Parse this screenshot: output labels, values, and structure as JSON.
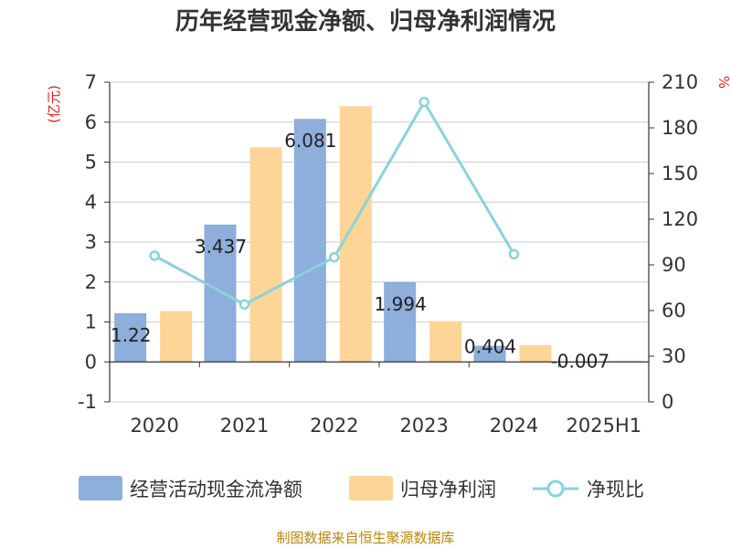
{
  "chart_data": {
    "type": "bar",
    "title": "历年经营现金净额、归母净利润情况",
    "categories": [
      "2020",
      "2021",
      "2022",
      "2023",
      "2024",
      "2025H1"
    ],
    "left_axis_unit": "(亿元)",
    "right_axis_unit": "%",
    "ylim": [
      -1,
      7
    ],
    "y_ticks": [
      -1,
      0,
      1,
      2,
      3,
      4,
      5,
      6,
      7
    ],
    "y2lim": [
      0,
      210
    ],
    "y2_ticks": [
      0,
      30,
      60,
      90,
      120,
      150,
      180,
      210
    ],
    "grid": true,
    "legend_position": "bottom",
    "series": [
      {
        "name": "经营活动现金流净额",
        "kind": "bar",
        "axis": "left",
        "color": "#8eaedb",
        "values": [
          1.22,
          3.437,
          6.081,
          1.994,
          0.404,
          -0.007
        ],
        "labels": [
          "1.22",
          "3.437",
          "6.081",
          "1.994",
          "0.404",
          "-0.007"
        ]
      },
      {
        "name": "归母净利润",
        "kind": "bar",
        "axis": "left",
        "color": "#fdd596",
        "values": [
          1.27,
          5.37,
          6.4,
          1.02,
          0.42,
          0.03
        ]
      },
      {
        "name": "净现比",
        "kind": "line",
        "axis": "right",
        "color": "#8ad3d8",
        "values": [
          96,
          64,
          95,
          197,
          97,
          null
        ]
      }
    ],
    "source": "制图数据来自恒生聚源数据库"
  }
}
